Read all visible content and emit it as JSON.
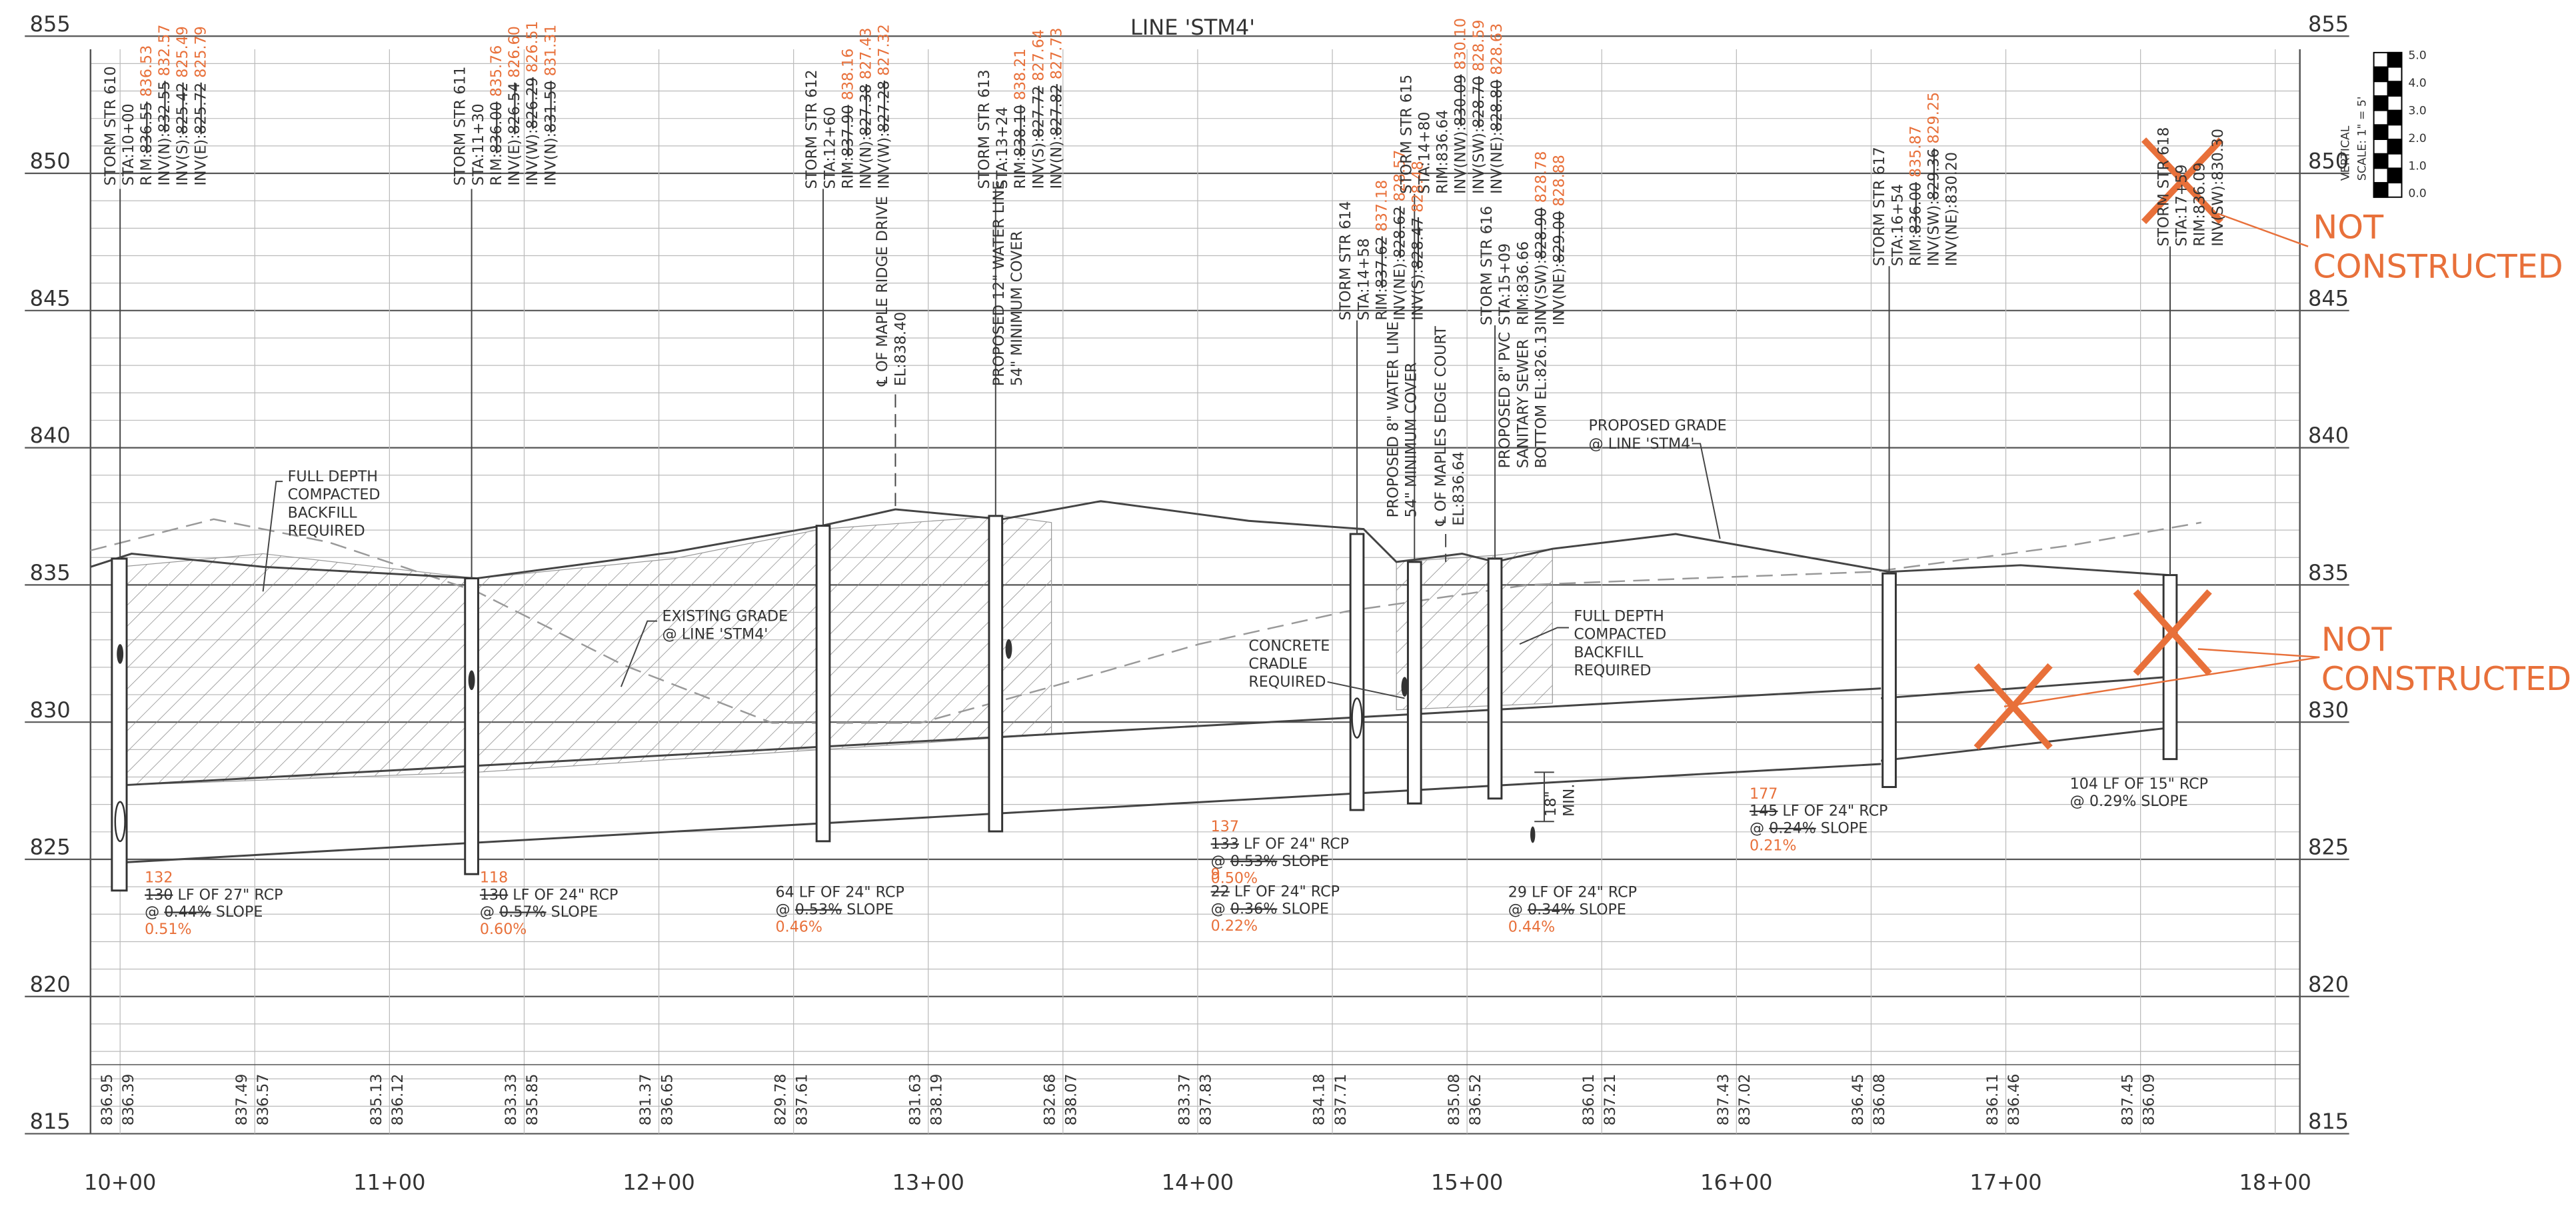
{
  "title": "LINE 'STM4'",
  "elevations": [
    "855",
    "850",
    "845",
    "840",
    "835",
    "830",
    "825",
    "820",
    "815"
  ],
  "stations": [
    "10+00",
    "11+00",
    "12+00",
    "13+00",
    "14+00",
    "15+00",
    "16+00",
    "17+00",
    "18+00"
  ],
  "scale": {
    "rows": [
      "VERTICAL",
      "SCALE: 1\" = 5'"
    ],
    "ticks": [
      "5.0",
      "4.0",
      "3.0",
      "2.0",
      "1.0",
      "0.0"
    ]
  },
  "structures": [
    {
      "rows": [
        [
          {
            "t": "STORM STR 610"
          }
        ],
        [
          {
            "t": "STA:10+00"
          }
        ],
        [
          {
            "t": "RIM:"
          },
          {
            "t": "836.55",
            "s": "strike"
          },
          {
            "t": " 836.53",
            "s": "orange"
          }
        ],
        [
          {
            "t": "INV(N):"
          },
          {
            "t": "832.55",
            "s": "strike"
          },
          {
            "t": " 832.57",
            "s": "orange"
          }
        ],
        [
          {
            "t": "INV(S):"
          },
          {
            "t": "825.42",
            "s": "strike"
          },
          {
            "t": " 825.49",
            "s": "orange"
          }
        ],
        [
          {
            "t": "INV(E):"
          },
          {
            "t": "825.72",
            "s": "strike"
          },
          {
            "t": " 825.79",
            "s": "orange"
          }
        ]
      ]
    },
    {
      "rows": [
        [
          {
            "t": "STORM STR 611"
          }
        ],
        [
          {
            "t": "STA:11+30"
          }
        ],
        [
          {
            "t": "RIM:"
          },
          {
            "t": "836.00",
            "s": "strike"
          },
          {
            "t": " 835.76",
            "s": "orange"
          }
        ],
        [
          {
            "t": "INV(E):"
          },
          {
            "t": "826.54",
            "s": "strike"
          },
          {
            "t": " 826.60",
            "s": "orange"
          }
        ],
        [
          {
            "t": "INV(W):"
          },
          {
            "t": "826.29",
            "s": "strike"
          },
          {
            "t": " 826.51",
            "s": "orange"
          }
        ],
        [
          {
            "t": "INV(N):"
          },
          {
            "t": "831.50",
            "s": "strike"
          },
          {
            "t": " 831.31",
            "s": "orange"
          }
        ]
      ]
    },
    {
      "rows": [
        [
          {
            "t": "STORM STR 612"
          }
        ],
        [
          {
            "t": "STA:12+60"
          }
        ],
        [
          {
            "t": "RIM:"
          },
          {
            "t": "837.90",
            "s": "strike"
          },
          {
            "t": " 838.16",
            "s": "orange"
          }
        ],
        [
          {
            "t": "INV(N):"
          },
          {
            "t": "827.38",
            "s": "strike"
          },
          {
            "t": " 827.43",
            "s": "orange"
          }
        ],
        [
          {
            "t": "INV(W):"
          },
          {
            "t": "827.28",
            "s": "strike"
          },
          {
            "t": " 827.32",
            "s": "orange"
          }
        ]
      ]
    },
    {
      "rows": [
        [
          {
            "t": "STORM STR 613"
          }
        ],
        [
          {
            "t": "STA:13+24"
          }
        ],
        [
          {
            "t": "RIM:"
          },
          {
            "t": "838.10",
            "s": "strike"
          },
          {
            "t": " 838.21",
            "s": "orange"
          }
        ],
        [
          {
            "t": "INV(S):"
          },
          {
            "t": "827.72",
            "s": "strike"
          },
          {
            "t": " 827.64",
            "s": "orange"
          }
        ],
        [
          {
            "t": "INV(N):"
          },
          {
            "t": "827.82",
            "s": "strike"
          },
          {
            "t": " 827.73",
            "s": "orange"
          }
        ]
      ]
    },
    {
      "rows": [
        [
          {
            "t": "STORM STR 614"
          }
        ],
        [
          {
            "t": "STA:14+58"
          }
        ],
        [
          {
            "t": "RIM:"
          },
          {
            "t": "837.62",
            "s": "strike"
          },
          {
            "t": " 837.18",
            "s": "orange"
          }
        ],
        [
          {
            "t": "INV(NE):"
          },
          {
            "t": "828.62",
            "s": "strike"
          },
          {
            "t": " 828.57",
            "s": "orange"
          }
        ],
        [
          {
            "t": "INV(S):"
          },
          {
            "t": "828.47",
            "s": "strike"
          },
          {
            "t": " 828.48",
            "s": "orange"
          }
        ]
      ]
    },
    {
      "rows": [
        [
          {
            "t": "STORM STR 615"
          }
        ],
        [
          {
            "t": "STA:14+80"
          }
        ],
        [
          {
            "t": "RIM:836.64"
          }
        ],
        [
          {
            "t": "INV(NW):"
          },
          {
            "t": "830.09",
            "s": "strike"
          },
          {
            "t": " 830.10",
            "s": "orange"
          }
        ],
        [
          {
            "t": "INV(SW):"
          },
          {
            "t": "828.70",
            "s": "strike"
          },
          {
            "t": " 828.59",
            "s": "orange"
          }
        ],
        [
          {
            "t": "INV(NE):"
          },
          {
            "t": "828.80",
            "s": "strike"
          },
          {
            "t": " 828.63",
            "s": "orange"
          }
        ]
      ]
    },
    {
      "rows": [
        [
          {
            "t": "STORM STR 616"
          }
        ],
        [
          {
            "t": "STA:15+09"
          }
        ],
        [
          {
            "t": "RIM:836.66"
          }
        ],
        [
          {
            "t": "INV(SW):"
          },
          {
            "t": "828.90",
            "s": "strike"
          },
          {
            "t": " 828.78",
            "s": "orange"
          }
        ],
        [
          {
            "t": "INV(NE):"
          },
          {
            "t": "829.00",
            "s": "strike"
          },
          {
            "t": " 828.88",
            "s": "orange"
          }
        ]
      ]
    },
    {
      "rows": [
        [
          {
            "t": "STORM STR 617"
          }
        ],
        [
          {
            "t": "STA:16+54"
          }
        ],
        [
          {
            "t": "RIM:"
          },
          {
            "t": "836.00",
            "s": "strike"
          },
          {
            "t": " 835.87",
            "s": "orange"
          }
        ],
        [
          {
            "t": "INV(SW):"
          },
          {
            "t": "829.36",
            "s": "strike"
          },
          {
            "t": " 829.25",
            "s": "orange"
          }
        ],
        [
          {
            "t": "INV(NE):830.20"
          }
        ]
      ]
    },
    {
      "rows": [
        [
          {
            "t": "STORM STR 618"
          }
        ],
        [
          {
            "t": "STA:17+59"
          }
        ],
        [
          {
            "t": "RIM:836.09"
          }
        ],
        [
          {
            "t": "INV(SW):830.30"
          }
        ]
      ]
    }
  ],
  "crossings": [
    {
      "rows": [
        [
          {
            "t": "℄ OF MAPLE RIDGE DRIVE"
          }
        ],
        [
          {
            "t": "EL:838.40"
          }
        ]
      ]
    },
    {
      "rows": [
        [
          {
            "t": "PROPOSED 12\" WATER LINE"
          }
        ],
        [
          {
            "t": "54\" MINIMUM COVER"
          }
        ]
      ]
    },
    {
      "rows": [
        [
          {
            "t": "PROPOSED 8\" WATER LINE"
          }
        ],
        [
          {
            "t": "54\" MINIMUM COVER"
          }
        ]
      ]
    },
    {
      "rows": [
        [
          {
            "t": "℄ OF MAPLES EDGE COURT"
          }
        ],
        [
          {
            "t": "EL:836.64"
          }
        ]
      ]
    },
    {
      "rows": [
        [
          {
            "t": "PROPOSED 8\" PVC"
          }
        ],
        [
          {
            "t": "SANITARY SEWER"
          }
        ],
        [
          {
            "t": "BOTTOM EL:826.13"
          }
        ]
      ]
    }
  ],
  "notes": [
    {
      "lines": [
        "FULL DEPTH",
        "COMPACTED",
        "BACKFILL",
        "REQUIRED"
      ]
    },
    {
      "lines": [
        "EXISTING GRADE",
        "@ LINE 'STM4'"
      ]
    },
    {
      "lines": [
        "PROPOSED GRADE",
        "@ LINE 'STM4'"
      ]
    },
    {
      "lines": [
        "CONCRETE",
        "CRADLE",
        "REQUIRED"
      ]
    },
    {
      "lines": [
        "FULL DEPTH",
        "COMPACTED",
        "BACKFILL",
        "REQUIRED"
      ]
    },
    {
      "lines": [
        "NOT",
        "CONSTRUCTED"
      ]
    },
    {
      "lines": [
        "NOT",
        "CONSTRUCTED"
      ]
    },
    {
      "lines": [
        "18\"",
        "MIN."
      ]
    }
  ],
  "pipes": [
    {
      "rows": [
        [
          {
            "t": "132",
            "s": "orange"
          }
        ],
        [
          {
            "t": "130",
            "s": "strike"
          },
          {
            "t": " LF OF 27\" RCP"
          }
        ],
        [
          {
            "t": "@ "
          },
          {
            "t": "0.44%",
            "s": "strike"
          },
          {
            "t": " SLOPE"
          }
        ],
        [
          {
            "t": "0.51%",
            "s": "orange"
          }
        ]
      ]
    },
    {
      "rows": [
        [
          {
            "t": "118",
            "s": "orange"
          }
        ],
        [
          {
            "t": "130",
            "s": "strike"
          },
          {
            "t": " LF OF 24\" RCP"
          }
        ],
        [
          {
            "t": "@ "
          },
          {
            "t": "0.57%",
            "s": "strike"
          },
          {
            "t": " SLOPE"
          }
        ],
        [
          {
            "t": "0.60%",
            "s": "orange"
          }
        ]
      ]
    },
    {
      "rows": [
        [
          {
            "t": "64 LF OF 24\" RCP"
          }
        ],
        [
          {
            "t": "@ "
          },
          {
            "t": "0.53%",
            "s": "strike"
          },
          {
            "t": " SLOPE"
          }
        ],
        [
          {
            "t": "0.46%",
            "s": "orange"
          }
        ]
      ]
    },
    {
      "rows": [
        [
          {
            "t": "137",
            "s": "orange"
          }
        ],
        [
          {
            "t": "133",
            "s": "strike"
          },
          {
            "t": " LF OF 24\" RCP"
          }
        ],
        [
          {
            "t": "@ "
          },
          {
            "t": "0.53%",
            "s": "strike"
          },
          {
            "t": " SLOPE"
          }
        ],
        [
          {
            "t": "0.50%",
            "s": "orange"
          }
        ]
      ]
    },
    {
      "rows": [
        [
          {
            "t": "9",
            "s": "orange"
          }
        ],
        [
          {
            "t": "22",
            "s": "strike"
          },
          {
            "t": " LF OF 24\" RCP"
          }
        ],
        [
          {
            "t": "@ "
          },
          {
            "t": "0.36%",
            "s": "strike"
          },
          {
            "t": " SLOPE"
          }
        ],
        [
          {
            "t": "0.22%",
            "s": "orange"
          }
        ]
      ]
    },
    {
      "rows": [
        [
          {
            "t": "29 LF OF 24\" RCP"
          }
        ],
        [
          {
            "t": "@ "
          },
          {
            "t": "0.34%",
            "s": "strike"
          },
          {
            "t": " SLOPE"
          }
        ],
        [
          {
            "t": "0.44%",
            "s": "orange"
          }
        ]
      ]
    },
    {
      "rows": [
        [
          {
            "t": "177",
            "s": "orange"
          }
        ],
        [
          {
            "t": "145",
            "s": "strike"
          },
          {
            "t": " LF OF 24\" RCP"
          }
        ],
        [
          {
            "t": "@ "
          },
          {
            "t": "0.24%",
            "s": "strike"
          },
          {
            "t": " SLOPE"
          }
        ],
        [
          {
            "t": "0.21%",
            "s": "orange"
          }
        ]
      ]
    },
    {
      "rows": [
        [
          {
            "t": "104 LF OF 15\" RCP"
          }
        ],
        [
          {
            "t": "@ 0.29% SLOPE"
          }
        ]
      ]
    }
  ],
  "grades": [
    [
      "836.95",
      "836.39"
    ],
    [
      "837.49",
      "836.57"
    ],
    [
      "835.13",
      "836.12"
    ],
    [
      "833.33",
      "835.85"
    ],
    [
      "831.37",
      "836.65"
    ],
    [
      "829.78",
      "837.61"
    ],
    [
      "831.63",
      "838.19"
    ],
    [
      "832.68",
      "838.07"
    ],
    [
      "833.37",
      "837.83"
    ],
    [
      "834.18",
      "837.71"
    ],
    [
      "835.08",
      "836.52"
    ],
    [
      "836.01",
      "837.21"
    ],
    [
      "837.43",
      "837.02"
    ],
    [
      "836.45",
      "836.08"
    ],
    [
      "836.11",
      "836.46"
    ],
    [
      "837.45",
      "836.09"
    ]
  ]
}
